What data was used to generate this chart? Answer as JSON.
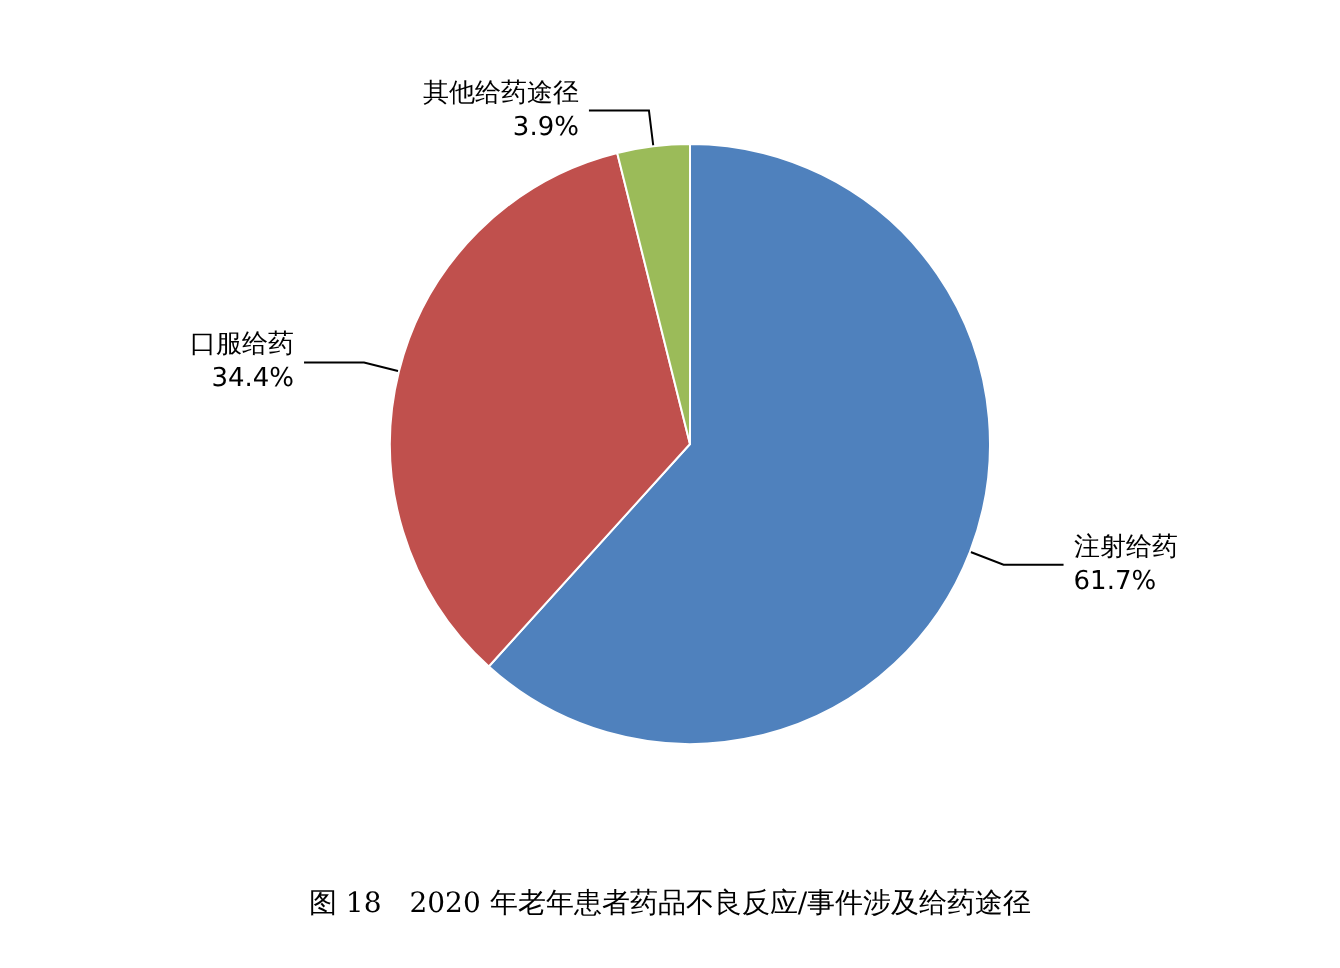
{
  "chart_data": {
    "type": "pie",
    "title": "图 18　2020 年老年患者药品不良反应/事件涉及给药途径",
    "categories": [
      "注射给药",
      "口服给药",
      "其他给药途径"
    ],
    "values": [
      61.7,
      34.4,
      3.9
    ],
    "value_labels": [
      "61.7%",
      "34.4%",
      "3.9%"
    ],
    "colors": [
      "#4f81bd",
      "#c0504d",
      "#9bbb59"
    ],
    "legend": false
  }
}
